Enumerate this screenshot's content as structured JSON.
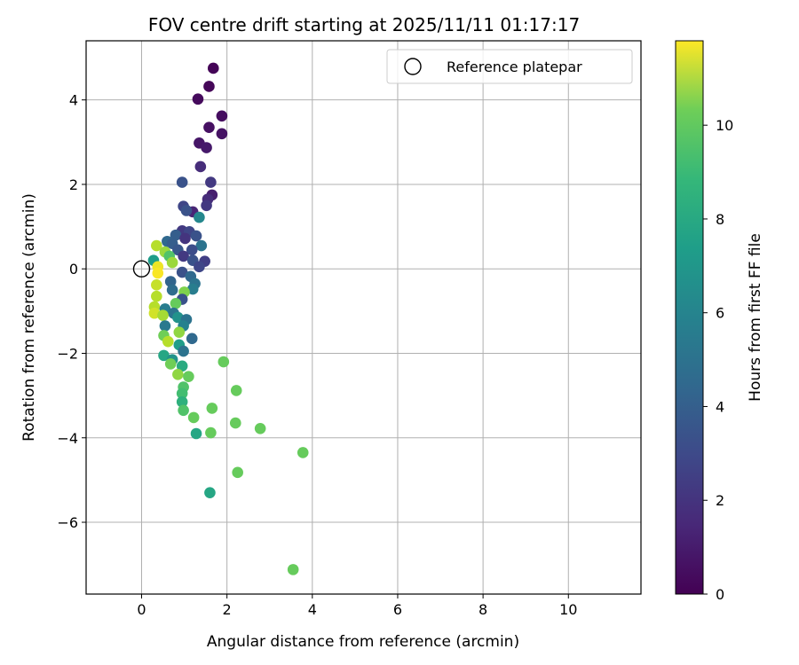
{
  "chart_data": {
    "type": "scatter",
    "title": "FOV centre drift starting at 2025/11/11 01:17:17",
    "xlabel": "Angular distance from reference (arcmin)",
    "ylabel": "Rotation from reference (arcmin)",
    "xlim": [
      -1.3,
      11.7
    ],
    "ylim": [
      -7.7,
      5.4
    ],
    "xticks": [
      0,
      2,
      4,
      6,
      8,
      10
    ],
    "yticks": [
      4,
      2,
      0,
      -2,
      -4,
      -6
    ],
    "grid": true,
    "legend": {
      "placement": "top-right",
      "entries": [
        "Reference platepar"
      ]
    },
    "reference_point": {
      "x": 0,
      "y": 0
    },
    "colorbar": {
      "label": "Hours from first FF file",
      "range": [
        0,
        11.8
      ],
      "ticks": [
        0,
        2,
        4,
        6,
        8,
        10
      ],
      "colormap": "viridis"
    },
    "points": [
      {
        "x": 1.68,
        "y": 4.75,
        "c": 0.1
      },
      {
        "x": 1.58,
        "y": 4.32,
        "c": 0.2
      },
      {
        "x": 1.32,
        "y": 4.02,
        "c": 0.3
      },
      {
        "x": 1.88,
        "y": 3.62,
        "c": 0.4
      },
      {
        "x": 1.58,
        "y": 3.35,
        "c": 0.5
      },
      {
        "x": 1.88,
        "y": 3.2,
        "c": 0.6
      },
      {
        "x": 1.35,
        "y": 2.98,
        "c": 0.7
      },
      {
        "x": 1.52,
        "y": 2.87,
        "c": 0.8
      },
      {
        "x": 1.38,
        "y": 2.42,
        "c": 1.5
      },
      {
        "x": 1.62,
        "y": 2.05,
        "c": 2.0
      },
      {
        "x": 0.95,
        "y": 2.05,
        "c": 3.0
      },
      {
        "x": 1.65,
        "y": 1.75,
        "c": 1.0
      },
      {
        "x": 1.55,
        "y": 1.65,
        "c": 1.5
      },
      {
        "x": 1.52,
        "y": 1.5,
        "c": 2.0
      },
      {
        "x": 0.98,
        "y": 1.48,
        "c": 2.5
      },
      {
        "x": 1.2,
        "y": 1.35,
        "c": 1.2
      },
      {
        "x": 1.05,
        "y": 1.38,
        "c": 3.0
      },
      {
        "x": 1.35,
        "y": 1.22,
        "c": 5.5
      },
      {
        "x": 0.95,
        "y": 0.9,
        "c": 2.0
      },
      {
        "x": 0.8,
        "y": 0.8,
        "c": 3.5
      },
      {
        "x": 1.12,
        "y": 0.88,
        "c": 2.5
      },
      {
        "x": 1.28,
        "y": 0.78,
        "c": 3.0
      },
      {
        "x": 1.02,
        "y": 0.72,
        "c": 1.8
      },
      {
        "x": 0.6,
        "y": 0.65,
        "c": 4.0
      },
      {
        "x": 0.72,
        "y": 0.6,
        "c": 3.5
      },
      {
        "x": 1.4,
        "y": 0.55,
        "c": 4.5
      },
      {
        "x": 0.35,
        "y": 0.55,
        "c": 10.5
      },
      {
        "x": 0.85,
        "y": 0.45,
        "c": 3.2
      },
      {
        "x": 1.18,
        "y": 0.45,
        "c": 2.8
      },
      {
        "x": 0.55,
        "y": 0.4,
        "c": 10.0
      },
      {
        "x": 0.65,
        "y": 0.3,
        "c": 8.5
      },
      {
        "x": 0.98,
        "y": 0.3,
        "c": 2.0
      },
      {
        "x": 0.28,
        "y": 0.2,
        "c": 6.5
      },
      {
        "x": 1.48,
        "y": 0.18,
        "c": 2.2
      },
      {
        "x": 0.72,
        "y": 0.15,
        "c": 10.0
      },
      {
        "x": 1.2,
        "y": 0.2,
        "c": 3.0
      },
      {
        "x": 1.35,
        "y": 0.05,
        "c": 2.5
      },
      {
        "x": 0.38,
        "y": 0.05,
        "c": 11.5
      },
      {
        "x": 0.95,
        "y": -0.08,
        "c": 3.0
      },
      {
        "x": 0.38,
        "y": -0.1,
        "c": 11.7
      },
      {
        "x": 1.15,
        "y": -0.18,
        "c": 4.0
      },
      {
        "x": 0.68,
        "y": -0.3,
        "c": 3.8
      },
      {
        "x": 1.25,
        "y": -0.35,
        "c": 4.5
      },
      {
        "x": 0.35,
        "y": -0.38,
        "c": 10.8
      },
      {
        "x": 1.2,
        "y": -0.48,
        "c": 5.0
      },
      {
        "x": 0.72,
        "y": -0.5,
        "c": 4.2
      },
      {
        "x": 1.0,
        "y": -0.55,
        "c": 9.5
      },
      {
        "x": 0.35,
        "y": -0.65,
        "c": 10.5
      },
      {
        "x": 0.95,
        "y": -0.72,
        "c": 3.0
      },
      {
        "x": 0.8,
        "y": -0.82,
        "c": 9.0
      },
      {
        "x": 0.3,
        "y": -0.9,
        "c": 10.5
      },
      {
        "x": 0.55,
        "y": -0.95,
        "c": 5.0
      },
      {
        "x": 0.75,
        "y": -1.05,
        "c": 4.5
      },
      {
        "x": 0.3,
        "y": -1.05,
        "c": 11.0
      },
      {
        "x": 0.5,
        "y": -1.1,
        "c": 10.2
      },
      {
        "x": 0.85,
        "y": -1.15,
        "c": 6.0
      },
      {
        "x": 1.05,
        "y": -1.2,
        "c": 4.5
      },
      {
        "x": 0.55,
        "y": -1.35,
        "c": 4.8
      },
      {
        "x": 0.98,
        "y": -1.35,
        "c": 5.2
      },
      {
        "x": 0.88,
        "y": -1.5,
        "c": 9.8
      },
      {
        "x": 0.52,
        "y": -1.58,
        "c": 9.2
      },
      {
        "x": 1.18,
        "y": -1.65,
        "c": 4.0
      },
      {
        "x": 0.62,
        "y": -1.72,
        "c": 10.5
      },
      {
        "x": 0.88,
        "y": -1.8,
        "c": 6.5
      },
      {
        "x": 0.98,
        "y": -1.95,
        "c": 4.5
      },
      {
        "x": 0.52,
        "y": -2.05,
        "c": 7.0
      },
      {
        "x": 0.72,
        "y": -2.15,
        "c": 6.0
      },
      {
        "x": 1.92,
        "y": -2.2,
        "c": 9.0
      },
      {
        "x": 0.68,
        "y": -2.25,
        "c": 9.2
      },
      {
        "x": 0.95,
        "y": -2.3,
        "c": 7.2
      },
      {
        "x": 0.85,
        "y": -2.5,
        "c": 9.8
      },
      {
        "x": 1.1,
        "y": -2.55,
        "c": 9.0
      },
      {
        "x": 0.98,
        "y": -2.8,
        "c": 8.5
      },
      {
        "x": 2.22,
        "y": -2.88,
        "c": 9.0
      },
      {
        "x": 0.95,
        "y": -2.95,
        "c": 8.2
      },
      {
        "x": 0.95,
        "y": -3.15,
        "c": 7.5
      },
      {
        "x": 1.65,
        "y": -3.3,
        "c": 9.0
      },
      {
        "x": 0.98,
        "y": -3.35,
        "c": 8.5
      },
      {
        "x": 1.22,
        "y": -3.52,
        "c": 9.0
      },
      {
        "x": 2.2,
        "y": -3.65,
        "c": 9.0
      },
      {
        "x": 2.78,
        "y": -3.78,
        "c": 9.0
      },
      {
        "x": 1.62,
        "y": -3.88,
        "c": 9.0
      },
      {
        "x": 1.28,
        "y": -3.9,
        "c": 7.0
      },
      {
        "x": 3.78,
        "y": -4.35,
        "c": 9.0
      },
      {
        "x": 2.25,
        "y": -4.82,
        "c": 9.0
      },
      {
        "x": 1.6,
        "y": -5.3,
        "c": 7.0
      },
      {
        "x": 3.55,
        "y": -7.12,
        "c": 9.0
      }
    ]
  }
}
